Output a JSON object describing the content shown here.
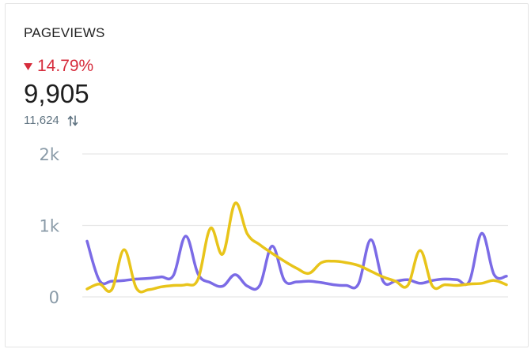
{
  "widget": {
    "title": "PAGEVIEWS",
    "change_percent": "14.79%",
    "change_direction": "down",
    "change_icon": "triangle-down-icon",
    "value": "9,905",
    "compare_value": "11,624",
    "compare_icon": "swap-vertical-arrows-icon"
  },
  "colors": {
    "negative": "#d62c3c",
    "series_current": "#7b6be6",
    "series_previous": "#e8c41a",
    "grid": "#e6e6e6",
    "axis_text": "#8a9ba8"
  },
  "chart_data": {
    "type": "line",
    "ylim": [
      0,
      2000
    ],
    "y_ticks": [
      {
        "value": 2000,
        "label": "2k"
      },
      {
        "value": 1000,
        "label": "1k"
      },
      {
        "value": 0,
        "label": "0"
      }
    ],
    "grid": true,
    "series": [
      {
        "color": "#7b6be6",
        "values": [
          780,
          230,
          220,
          230,
          250,
          260,
          280,
          300,
          850,
          320,
          200,
          150,
          310,
          150,
          160,
          710,
          230,
          210,
          220,
          200,
          170,
          160,
          180,
          800,
          220,
          220,
          240,
          190,
          230,
          250,
          240,
          220,
          890,
          310,
          290
        ]
      },
      {
        "color": "#e8c41a",
        "values": [
          110,
          180,
          100,
          660,
          120,
          100,
          140,
          160,
          170,
          250,
          960,
          600,
          1310,
          880,
          730,
          610,
          500,
          400,
          330,
          480,
          500,
          480,
          440,
          360,
          280,
          220,
          160,
          650,
          150,
          170,
          160,
          180,
          190,
          230,
          170
        ]
      }
    ]
  }
}
